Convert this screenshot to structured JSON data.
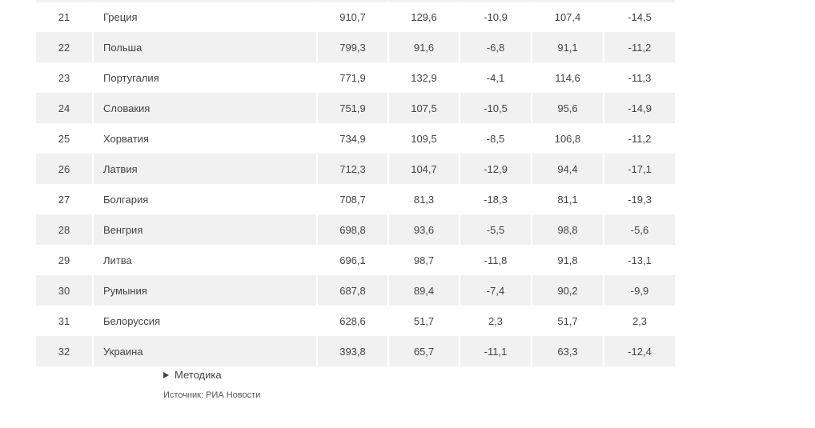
{
  "table": {
    "rows": [
      {
        "rank": "21",
        "name": "Греция",
        "v1": "910,7",
        "v2": "129,6",
        "v3": "-10,9",
        "v4": "107,4",
        "v5": "-14,5"
      },
      {
        "rank": "22",
        "name": "Польша",
        "v1": "799,3",
        "v2": "91,6",
        "v3": "-6,8",
        "v4": "91,1",
        "v5": "-11,2"
      },
      {
        "rank": "23",
        "name": "Португалия",
        "v1": "771,9",
        "v2": "132,9",
        "v3": "-4,1",
        "v4": "114,6",
        "v5": "-11,3"
      },
      {
        "rank": "24",
        "name": "Словакия",
        "v1": "751,9",
        "v2": "107,5",
        "v3": "-10,5",
        "v4": "95,6",
        "v5": "-14,9"
      },
      {
        "rank": "25",
        "name": "Хорватия",
        "v1": "734,9",
        "v2": "109,5",
        "v3": "-8,5",
        "v4": "106,8",
        "v5": "-11,2"
      },
      {
        "rank": "26",
        "name": "Латвия",
        "v1": "712,3",
        "v2": "104,7",
        "v3": "-12,9",
        "v4": "94,4",
        "v5": "-17,1"
      },
      {
        "rank": "27",
        "name": "Болгария",
        "v1": "708,7",
        "v2": "81,3",
        "v3": "-18,3",
        "v4": "81,1",
        "v5": "-19,3"
      },
      {
        "rank": "28",
        "name": "Венгрия",
        "v1": "698,8",
        "v2": "93,6",
        "v3": "-5,5",
        "v4": "98,8",
        "v5": "-5,6"
      },
      {
        "rank": "29",
        "name": "Литва",
        "v1": "696,1",
        "v2": "98,7",
        "v3": "-11,8",
        "v4": "91,8",
        "v5": "-13,1"
      },
      {
        "rank": "30",
        "name": "Румыния",
        "v1": "687,8",
        "v2": "89,4",
        "v3": "-7,4",
        "v4": "90,2",
        "v5": "-9,9"
      },
      {
        "rank": "31",
        "name": "Белоруссия",
        "v1": "628,6",
        "v2": "51,7",
        "v3": "2,3",
        "v4": "51,7",
        "v5": "2,3"
      },
      {
        "rank": "32",
        "name": "Украина",
        "v1": "393,8",
        "v2": "65,7",
        "v3": "-11,1",
        "v4": "63,3",
        "v5": "-12,4"
      }
    ]
  },
  "footer": {
    "methodology_label": "Методика",
    "source_text": "Источник: РИА Новости"
  },
  "colors": {
    "row_alt_bg": "#f1f1f1",
    "text": "#444444"
  },
  "icons": {
    "methodology_toggle": "triangle-right-icon"
  }
}
